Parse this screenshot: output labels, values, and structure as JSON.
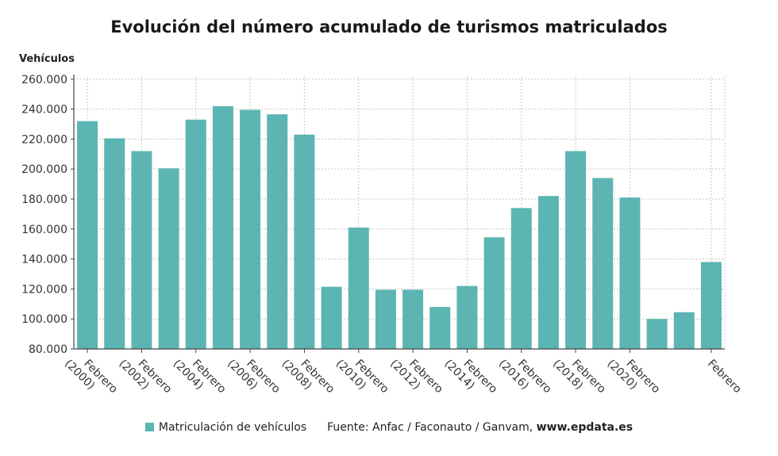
{
  "chart_data": {
    "type": "bar",
    "title": "Evolución del número acumulado de turismos matriculados",
    "ylabel": "Vehículos",
    "ylim": [
      80000,
      262000
    ],
    "yticks": [
      "80.000",
      "100.000",
      "120.000",
      "140.000",
      "160.000",
      "180.000",
      "200.000",
      "220.000",
      "240.000",
      "260.000"
    ],
    "ytick_values": [
      80000,
      100000,
      120000,
      140000,
      160000,
      180000,
      200000,
      220000,
      240000,
      260000
    ],
    "grid": true,
    "bar_color": "#5cb5b2",
    "categories": [
      "Febrero (2000)",
      "",
      "Febrero (2002)",
      "",
      "Febrero (2004)",
      "",
      "Febrero (2006)",
      "",
      "Febrero (2008)",
      "",
      "Febrero (2010)",
      "",
      "Febrero (2012)",
      "",
      "Febrero (2014)",
      "",
      "Febrero (2016)",
      "",
      "Febrero (2018)",
      "",
      "Febrero (2020)",
      "",
      "",
      "Febrero"
    ],
    "tick_labels": [
      [
        "Febrero",
        "(2000)"
      ],
      [],
      [
        "Febrero",
        "(2002)"
      ],
      [],
      [
        "Febrero",
        "(2004)"
      ],
      [],
      [
        "Febrero",
        "(2006)"
      ],
      [],
      [
        "Febrero",
        "(2008)"
      ],
      [],
      [
        "Febrero",
        "(2010)"
      ],
      [],
      [
        "Febrero",
        "(2012)"
      ],
      [],
      [
        "Febrero",
        "(2014)"
      ],
      [],
      [
        "Febrero",
        "(2016)"
      ],
      [],
      [
        "Febrero",
        "(2018)"
      ],
      [],
      [
        "Febrero",
        "(2020)"
      ],
      [],
      [],
      [
        "Febrero"
      ]
    ],
    "series": [
      {
        "name": "Matriculación de vehículos",
        "values": [
          232000,
          220500,
          212000,
          200500,
          233000,
          242000,
          239500,
          236500,
          223000,
          121500,
          161000,
          119500,
          119500,
          108000,
          122000,
          154500,
          174000,
          182000,
          212000,
          194000,
          181000,
          100000,
          104500,
          138000
        ]
      }
    ],
    "legend_position": "bottom"
  },
  "legend": {
    "series_label": "Matriculación de vehículos",
    "source_text": "Fuente: Anfac / Faconauto / Ganvam, ",
    "source_site": "www.epdata.es"
  }
}
